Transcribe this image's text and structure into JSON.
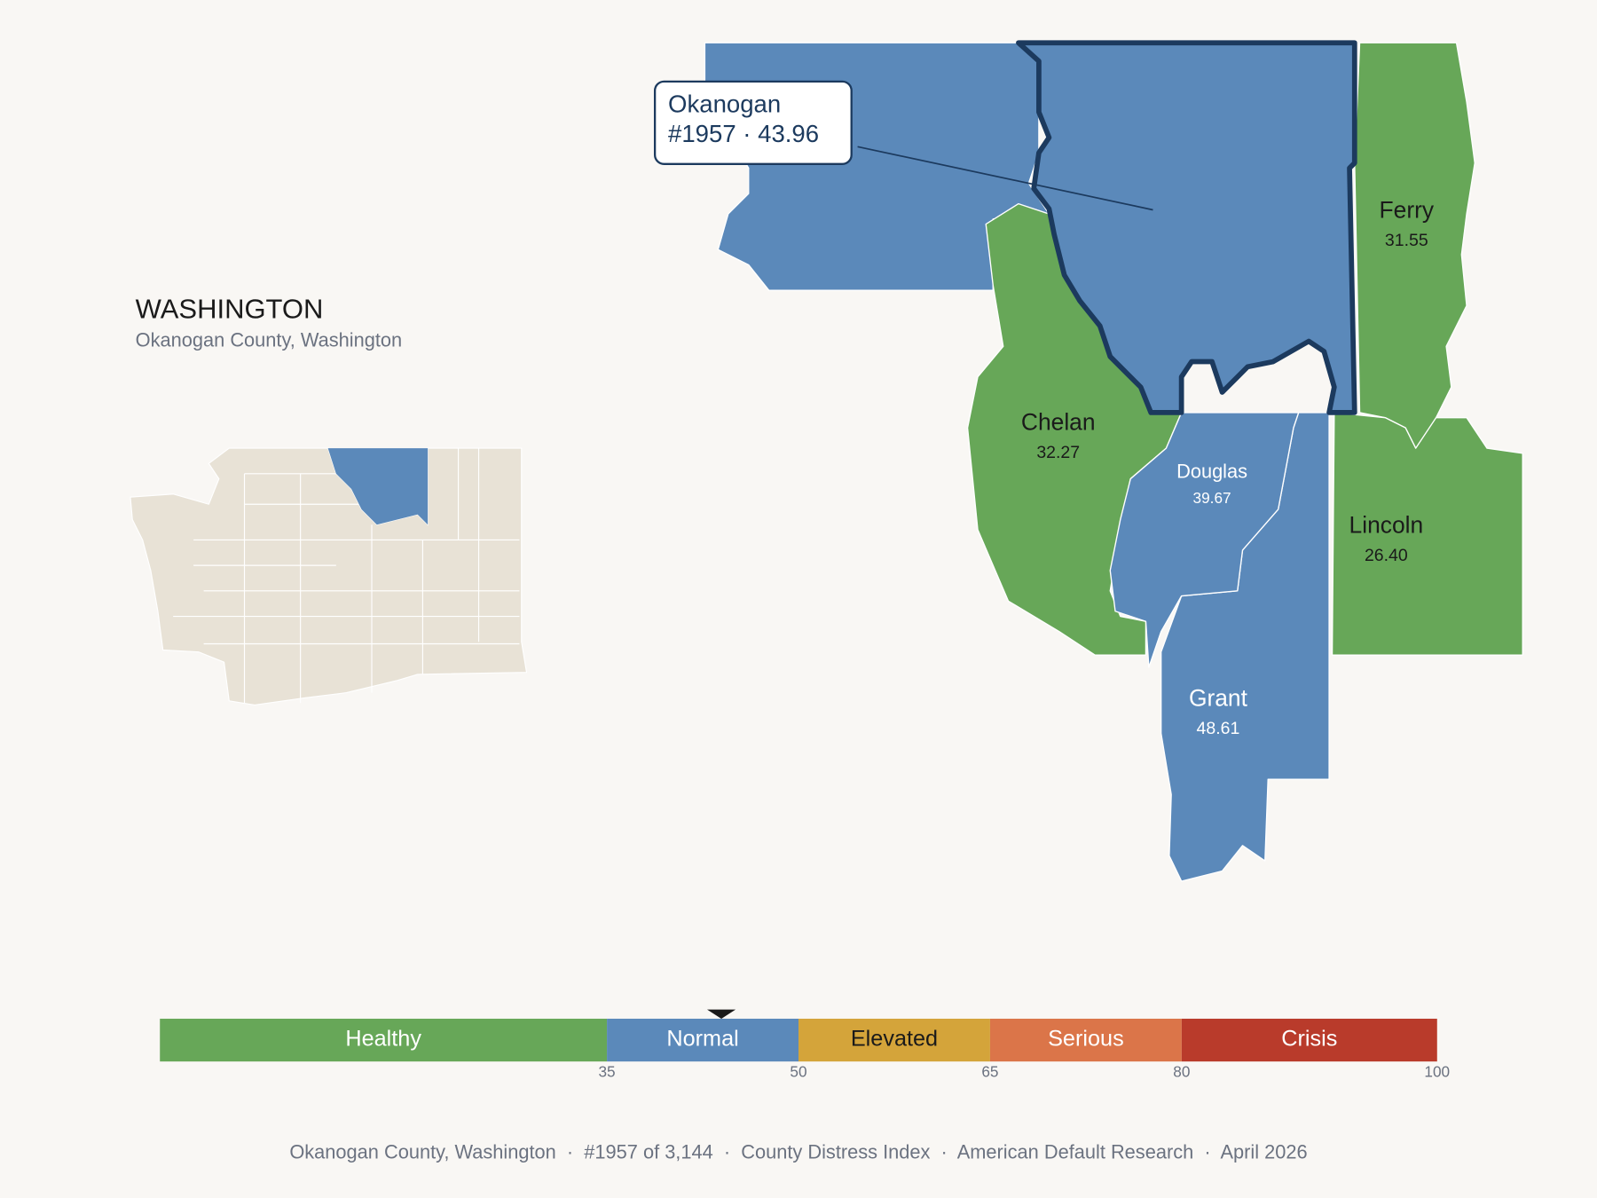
{
  "state": {
    "title": "WASHINGTON",
    "subtitle": "Okanogan County, Washington"
  },
  "counties": [
    {
      "name": "Okanogan",
      "color": "#5b89ba"
    },
    {
      "name": "Ferry",
      "value": "31.55",
      "color": "#67a758"
    },
    {
      "name": "Chelan",
      "value": "32.27",
      "color": "#67a758"
    },
    {
      "name": "Douglas",
      "value": "39.67",
      "color": "#5b89ba"
    },
    {
      "name": "Lincoln",
      "value": "26.40",
      "color": "#67a758"
    },
    {
      "name": "Grant",
      "value": "48.61",
      "color": "#5b89ba"
    }
  ],
  "callout": {
    "label": "#1957 · 43.96"
  },
  "scale": {
    "range": [
      0,
      100
    ],
    "ticks": [
      35,
      50,
      65,
      80,
      100
    ],
    "bands": [
      {
        "label": "Healthy",
        "color": "#67a758"
      },
      {
        "label": "Normal",
        "color": "#5b89ba"
      },
      {
        "label": "Elevated",
        "color": "#d4a43a"
      },
      {
        "label": "Serious",
        "color": "#db7549"
      },
      {
        "label": "Crisis",
        "color": "#b93b2b"
      }
    ],
    "marker": 43.96
  },
  "footer": "Okanogan County, Washington  ·  #1957 of 3,144  ·  County Distress Index  ·  American Default Research  ·  April 2026"
}
